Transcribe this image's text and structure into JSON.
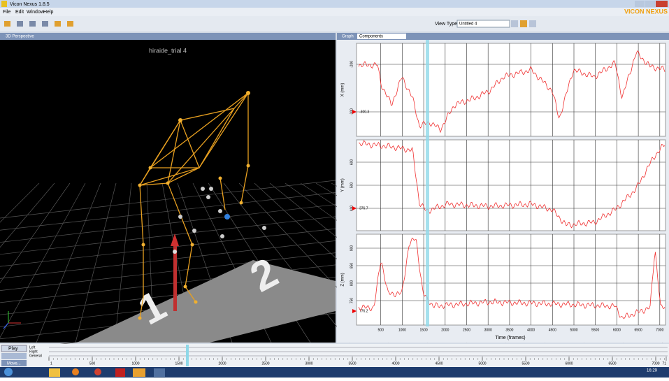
{
  "window": {
    "title": "Vicon Nexus 1.8.5",
    "brand": "VICON NEXUS"
  },
  "menu": [
    "File",
    "Edit",
    "Window",
    "Help"
  ],
  "toolbar": {
    "view_type_label": "View Type:",
    "view_type": "Untitled 4"
  },
  "perspective": {
    "panel": "3D Perspective",
    "trial": "hiraide_trial 4",
    "floor_labels": [
      "1",
      "2"
    ]
  },
  "graph": {
    "panel": "Graph",
    "mode": "Components",
    "x_label": "Time (frames)",
    "x_ticks": [
      "500",
      "1000",
      "1500",
      "2000",
      "2500",
      "3000",
      "3500",
      "4000",
      "4500",
      "5000",
      "5500",
      "6000",
      "6500",
      "7000"
    ],
    "plots": [
      {
        "y_label": "X (mm)",
        "y_ticks": [
          "-200",
          "-300"
        ],
        "current": "-300.3"
      },
      {
        "y_label": "Y (mm)",
        "y_ticks": [
          "600",
          "500",
          "400"
        ],
        "current": "376.7"
      },
      {
        "y_label": "Z (mm)",
        "y_ticks": [
          "900",
          "850",
          "800",
          "750"
        ],
        "current": "776.2"
      }
    ]
  },
  "timeline": {
    "play": "Play",
    "tracks": [
      "Left",
      "Right",
      "General"
    ],
    "move": "Move...",
    "ticks": [
      "1",
      "500",
      "1000",
      "1500",
      "2000",
      "2500",
      "3000",
      "3500",
      "4000",
      "4500",
      "5000",
      "5500",
      "6000",
      "6500",
      "7000",
      "71"
    ]
  },
  "taskbar": {
    "time": "16:29"
  }
}
